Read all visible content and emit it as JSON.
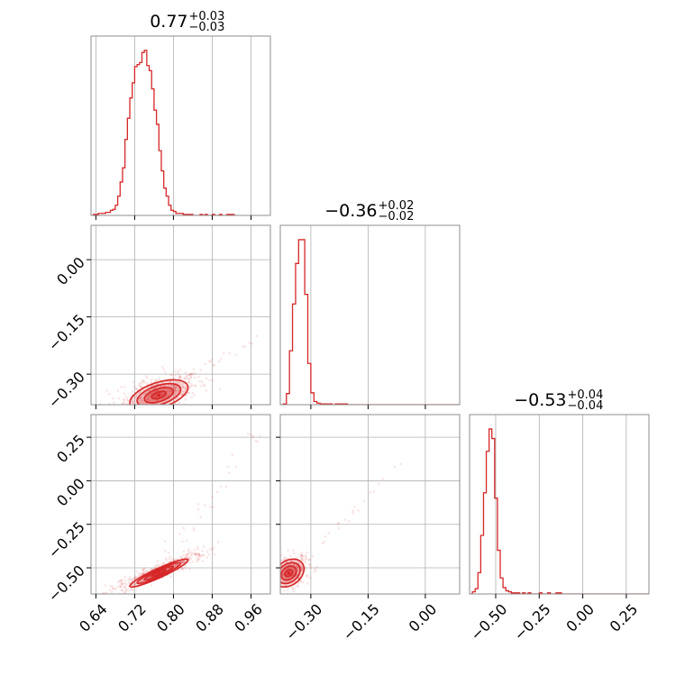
{
  "chart_data": {
    "type": "corner",
    "color": "#d62728",
    "parameters": [
      {
        "median": "0.77",
        "plus": "+0.03",
        "minus": "−0.03",
        "range": [
          0.63,
          1.0
        ]
      },
      {
        "median": "−0.36",
        "plus": "+0.02",
        "minus": "−0.02",
        "range": [
          -0.38,
          0.09
        ]
      },
      {
        "median": "−0.53",
        "plus": "+0.04",
        "minus": "−0.04",
        "range": [
          -0.65,
          0.38
        ]
      }
    ],
    "ticks": [
      {
        "values": [
          0.64,
          0.72,
          0.8,
          0.88,
          0.96
        ],
        "labels": [
          "0.64",
          "0.72",
          "0.80",
          "0.88",
          "0.96"
        ]
      },
      {
        "values": [
          -0.3,
          -0.15,
          0.0
        ],
        "labels": [
          "−0.30",
          "−0.15",
          "0.00"
        ]
      },
      {
        "values": [
          -0.5,
          -0.25,
          0.0,
          0.25
        ],
        "labels": [
          "−0.50",
          "−0.25",
          "0.00",
          "0.25"
        ]
      }
    ],
    "histograms": [
      {
        "param": 0,
        "bin_start": 0.63,
        "bin_width": 0.005,
        "counts": [
          0,
          1,
          1,
          2,
          2,
          2,
          3,
          3,
          5,
          6,
          10,
          19,
          33,
          47,
          75,
          96,
          116,
          131,
          147,
          149,
          151,
          161,
          163,
          148,
          143,
          125,
          104,
          90,
          64,
          44,
          27,
          19,
          10,
          5,
          4,
          2,
          2,
          2,
          1,
          1,
          1,
          1,
          0,
          0,
          0,
          1,
          0,
          1,
          0,
          0,
          1,
          0,
          0,
          1,
          0,
          0,
          1,
          1,
          1,
          0
        ]
      },
      {
        "param": 1,
        "bin_start": -0.38,
        "bin_width": 0.008,
        "counts": [
          0,
          1,
          14,
          68,
          127,
          178,
          208,
          208,
          139,
          52,
          15,
          4,
          2,
          1,
          1,
          1,
          1,
          0,
          1,
          1,
          1,
          1,
          0,
          0,
          0,
          0,
          0,
          0,
          0,
          0,
          0,
          0,
          0,
          0,
          0,
          0,
          0,
          0,
          0,
          0,
          0,
          0,
          0,
          0,
          0,
          0,
          0,
          0,
          0,
          0,
          0,
          0,
          0,
          0,
          0,
          0,
          0,
          0,
          0
        ]
      },
      {
        "param": 2,
        "bin_start": -0.65,
        "bin_width": 0.016,
        "counts": [
          0,
          2,
          5,
          20,
          55,
          95,
          134,
          155,
          146,
          90,
          41,
          15,
          6,
          3,
          2,
          1,
          1,
          1,
          0,
          1,
          0,
          1,
          0,
          0,
          0,
          1,
          0,
          0,
          1,
          0,
          0,
          1,
          1,
          0,
          0,
          0,
          0,
          0,
          0,
          0,
          0,
          0,
          0,
          0,
          0,
          0,
          0,
          0,
          0,
          0,
          0,
          0,
          0,
          0,
          0,
          0,
          0,
          0,
          0,
          0,
          0,
          0,
          0,
          0,
          0
        ]
      }
    ],
    "pairs": [
      {
        "x": 0,
        "y": 1,
        "center": [
          0.77,
          -0.355
        ],
        "sigma": [
          0.03,
          0.02
        ],
        "rho": 0.5,
        "scatter": {
          "n": 500,
          "center": [
            0.77,
            -0.35
          ],
          "spread": [
            0.07,
            0.04
          ],
          "tail_to": [
            0.98,
            -0.2
          ]
        }
      },
      {
        "x": 0,
        "y": 2,
        "center": [
          0.77,
          -0.53
        ],
        "sigma": [
          0.03,
          0.04
        ],
        "rho": 0.93,
        "scatter": {
          "n": 500,
          "center": [
            0.77,
            -0.52
          ],
          "spread": [
            0.08,
            0.1
          ],
          "tail_to": [
            0.98,
            0.3
          ]
        }
      },
      {
        "x": 1,
        "y": 2,
        "center": [
          -0.358,
          -0.53
        ],
        "sigma": [
          0.02,
          0.04
        ],
        "rho": 0.3,
        "scatter": {
          "n": 300,
          "center": [
            -0.35,
            -0.52
          ],
          "spread": [
            0.04,
            0.08
          ],
          "tail_to": [
            -0.06,
            0.1
          ]
        }
      }
    ]
  }
}
